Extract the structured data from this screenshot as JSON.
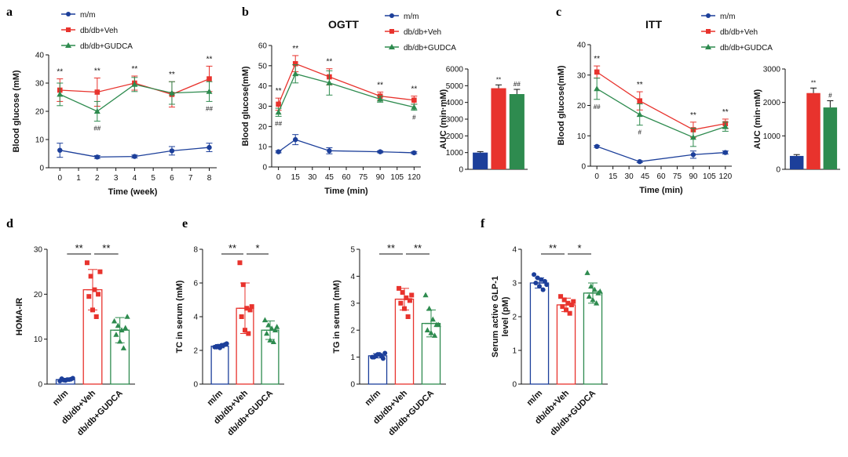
{
  "colors": {
    "mm": "#1c3f9a",
    "veh": "#e8332d",
    "gudca": "#2e8b4f",
    "axis": "#111111"
  },
  "legend": [
    "m/m",
    "db/db+Veh",
    "db/db+GUDCA"
  ],
  "panels": [
    "a",
    "b",
    "c",
    "d",
    "e",
    "f"
  ],
  "chart_data": [
    {
      "id": "a",
      "type": "line",
      "xlabel": "Time (week)",
      "ylabel": "Blood glucose (mM)",
      "xlim": [
        -0.6,
        8.4
      ],
      "ylim": [
        0,
        40
      ],
      "xticks": [
        0,
        1,
        2,
        3,
        4,
        5,
        6,
        7,
        8
      ],
      "yticks": [
        0,
        10,
        20,
        30,
        40
      ],
      "x": [
        0,
        2,
        4,
        6,
        8
      ],
      "series": [
        {
          "name": "m/m",
          "values": [
            6.2,
            3.8,
            4.0,
            6.0,
            7.2
          ],
          "err": [
            2.5,
            0.5,
            0.5,
            1.5,
            1.5
          ]
        },
        {
          "name": "db/db+Veh",
          "values": [
            27.5,
            26.8,
            30.0,
            26.0,
            31.5
          ],
          "err": [
            4.0,
            5.0,
            2.5,
            4.5,
            4.5
          ]
        },
        {
          "name": "db/db+GUDCA",
          "values": [
            26.0,
            20.0,
            29.5,
            26.5,
            27.0
          ],
          "err": [
            4.0,
            3.5,
            2.5,
            4.0,
            3.5
          ]
        }
      ],
      "annotations": [
        {
          "x": 0,
          "text": "**",
          "row": "top"
        },
        {
          "x": 2,
          "text": "**",
          "row": "top"
        },
        {
          "x": 2,
          "text": "##",
          "row": "bottom"
        },
        {
          "x": 4,
          "text": "**",
          "row": "top"
        },
        {
          "x": 6,
          "text": "**",
          "row": "top"
        },
        {
          "x": 8,
          "text": "**",
          "row": "top"
        },
        {
          "x": 8,
          "text": "##",
          "row": "bottom"
        }
      ]
    },
    {
      "id": "b",
      "type": "line",
      "title": "OGTT",
      "xlabel": "Time (min)",
      "ylabel": "Blood glucose(mM)",
      "xlim": [
        -6,
        126
      ],
      "ylim": [
        0,
        60
      ],
      "xticks": [
        0,
        15,
        30,
        45,
        60,
        75,
        90,
        105,
        120
      ],
      "yticks": [
        0,
        10,
        20,
        30,
        40,
        50,
        60
      ],
      "x": [
        0,
        15,
        45,
        90,
        120
      ],
      "series": [
        {
          "name": "m/m",
          "values": [
            7.5,
            13.5,
            8.0,
            7.5,
            7.0
          ],
          "err": [
            0.5,
            2.5,
            1.5,
            0.5,
            0.5
          ]
        },
        {
          "name": "db/db+Veh",
          "values": [
            31.0,
            51.0,
            44.5,
            35.0,
            33.0
          ],
          "err": [
            3.0,
            4.0,
            4.0,
            2.0,
            2.0
          ]
        },
        {
          "name": "db/db+GUDCA",
          "values": [
            27.0,
            46.0,
            41.5,
            33.5,
            29.5
          ],
          "err": [
            2.0,
            4.5,
            6.0,
            1.5,
            1.5
          ]
        }
      ],
      "annotations": [
        {
          "x": 0,
          "text": "**",
          "row": "top"
        },
        {
          "x": 0,
          "text": "##",
          "row": "bottom"
        },
        {
          "x": 15,
          "text": "**",
          "row": "top"
        },
        {
          "x": 45,
          "text": "**",
          "row": "top"
        },
        {
          "x": 90,
          "text": "**",
          "row": "top"
        },
        {
          "x": 120,
          "text": "**",
          "row": "top"
        },
        {
          "x": 120,
          "text": "#",
          "row": "bottom"
        }
      ]
    },
    {
      "id": "b-auc",
      "type": "bar",
      "ylabel": "AUC (min·mM)",
      "ylim": [
        0,
        6000
      ],
      "yticks": [
        0,
        1000,
        2000,
        3000,
        4000,
        5000,
        6000
      ],
      "categories": [
        "m/m",
        "db/db+Veh",
        "db/db+GUDCA"
      ],
      "values": [
        1000,
        4850,
        4500
      ],
      "err": [
        60,
        200,
        280
      ],
      "labels": [
        "",
        "**",
        "##"
      ]
    },
    {
      "id": "c",
      "type": "line",
      "title": "ITT",
      "xlabel": "Time (min)",
      "ylabel": "Blood glucose(mM)",
      "xlim": [
        -6,
        126
      ],
      "ylim": [
        0,
        40
      ],
      "xticks": [
        0,
        15,
        30,
        45,
        60,
        75,
        90,
        105,
        120
      ],
      "yticks": [
        0,
        10,
        20,
        30,
        40
      ],
      "x": [
        0,
        40,
        90,
        120
      ],
      "series": [
        {
          "name": "m/m",
          "values": [
            6.5,
            1.5,
            3.8,
            4.5
          ],
          "err": [
            0.3,
            0.3,
            1.2,
            0.5
          ]
        },
        {
          "name": "db/db+Veh",
          "values": [
            31.0,
            21.5,
            12.0,
            14.0
          ],
          "err": [
            2.0,
            3.0,
            2.5,
            1.5
          ]
        },
        {
          "name": "db/db+GUDCA",
          "values": [
            25.5,
            17.0,
            9.5,
            13.0
          ],
          "err": [
            3.5,
            3.5,
            3.0,
            1.5
          ]
        }
      ],
      "annotations": [
        {
          "x": 0,
          "text": "**",
          "row": "top"
        },
        {
          "x": 0,
          "text": "##",
          "row": "bottom"
        },
        {
          "x": 40,
          "text": "**",
          "row": "top"
        },
        {
          "x": 40,
          "text": "#",
          "row": "bottom"
        },
        {
          "x": 90,
          "text": "**",
          "row": "top"
        },
        {
          "x": 120,
          "text": "**",
          "row": "top"
        }
      ]
    },
    {
      "id": "c-auc",
      "type": "bar",
      "ylabel": "AUC (min·mM)",
      "ylim": [
        0,
        3000
      ],
      "yticks": [
        0,
        1000,
        2000,
        3000
      ],
      "categories": [
        "m/m",
        "db/db+Veh",
        "db/db+GUDCA"
      ],
      "values": [
        400,
        2280,
        1850
      ],
      "err": [
        40,
        150,
        200
      ],
      "labels": [
        "",
        "**",
        "#"
      ]
    },
    {
      "id": "d",
      "type": "bar",
      "ylabel": "HOMA-IR",
      "ylim": [
        0,
        30
      ],
      "yticks": [
        0,
        10,
        20,
        30
      ],
      "categories": [
        "m/m",
        "db/db+Veh",
        "db/db+GUDCA"
      ],
      "values": [
        1.0,
        21.0,
        12.0
      ],
      "err": [
        0.3,
        4.5,
        2.8
      ],
      "points": [
        [
          0.7,
          0.9,
          1.0,
          1.1,
          1.2,
          0.8,
          1.0,
          1.3
        ],
        [
          27.0,
          24.0,
          21.0,
          20.0,
          19.5,
          16.5,
          15.0,
          25.0
        ],
        [
          14.0,
          13.0,
          12.0,
          12.5,
          11.0,
          9.5,
          8.0,
          15.0
        ]
      ],
      "sig": [
        {
          "from": 0,
          "to": 1,
          "text": "**"
        },
        {
          "from": 1,
          "to": 2,
          "text": "**"
        }
      ]
    },
    {
      "id": "e1",
      "type": "bar",
      "ylabel": "TC in serum (mM)",
      "ylim": [
        0,
        8
      ],
      "yticks": [
        0,
        2,
        4,
        6,
        8
      ],
      "categories": [
        "m/m",
        "db/db+Veh",
        "db/db+GUDCA"
      ],
      "values": [
        2.25,
        4.5,
        3.2
      ],
      "err": [
        0.1,
        1.5,
        0.55
      ],
      "points": [
        [
          2.2,
          2.25,
          2.3,
          2.35,
          2.2,
          2.15,
          2.3,
          2.4
        ],
        [
          7.2,
          5.9,
          4.5,
          4.4,
          4.0,
          3.2,
          3.0,
          4.6
        ],
        [
          3.8,
          3.5,
          3.3,
          3.2,
          3.0,
          2.6,
          2.5,
          3.4
        ]
      ],
      "sig": [
        {
          "from": 0,
          "to": 1,
          "text": "**"
        },
        {
          "from": 1,
          "to": 2,
          "text": "*"
        }
      ]
    },
    {
      "id": "e2",
      "type": "bar",
      "ylabel": "TG in serum (mM)",
      "ylim": [
        0,
        5
      ],
      "yticks": [
        0,
        1,
        2,
        3,
        4,
        5
      ],
      "categories": [
        "m/m",
        "db/db+Veh",
        "db/db+GUDCA"
      ],
      "values": [
        1.05,
        3.15,
        2.25
      ],
      "err": [
        0.08,
        0.4,
        0.5
      ],
      "points": [
        [
          1.0,
          1.05,
          1.1,
          0.95,
          1.0,
          1.1,
          1.05,
          1.15
        ],
        [
          3.55,
          3.4,
          3.2,
          3.1,
          3.0,
          2.8,
          2.5,
          3.3
        ],
        [
          3.3,
          2.8,
          2.4,
          2.2,
          2.0,
          1.9,
          1.8,
          2.2
        ]
      ],
      "sig": [
        {
          "from": 0,
          "to": 1,
          "text": "**"
        },
        {
          "from": 1,
          "to": 2,
          "text": "**"
        }
      ]
    },
    {
      "id": "f",
      "type": "bar",
      "ylabel": "Serum active GLP-1 level (pM)",
      "ylim": [
        0,
        4
      ],
      "yticks": [
        0,
        1,
        2,
        3,
        4
      ],
      "categories": [
        "m/m",
        "db/db+Veh",
        "db/db+GUDCA"
      ],
      "values": [
        3.0,
        2.35,
        2.7
      ],
      "err": [
        0.15,
        0.2,
        0.3
      ],
      "points": [
        [
          3.25,
          3.15,
          3.1,
          3.05,
          3.0,
          2.9,
          2.8,
          2.95
        ],
        [
          2.6,
          2.5,
          2.4,
          2.35,
          2.3,
          2.2,
          2.1,
          2.45
        ],
        [
          3.3,
          2.9,
          2.8,
          2.7,
          2.6,
          2.5,
          2.4,
          2.75
        ]
      ],
      "sig": [
        {
          "from": 0,
          "to": 1,
          "text": "**"
        },
        {
          "from": 1,
          "to": 2,
          "text": "*"
        }
      ]
    }
  ]
}
